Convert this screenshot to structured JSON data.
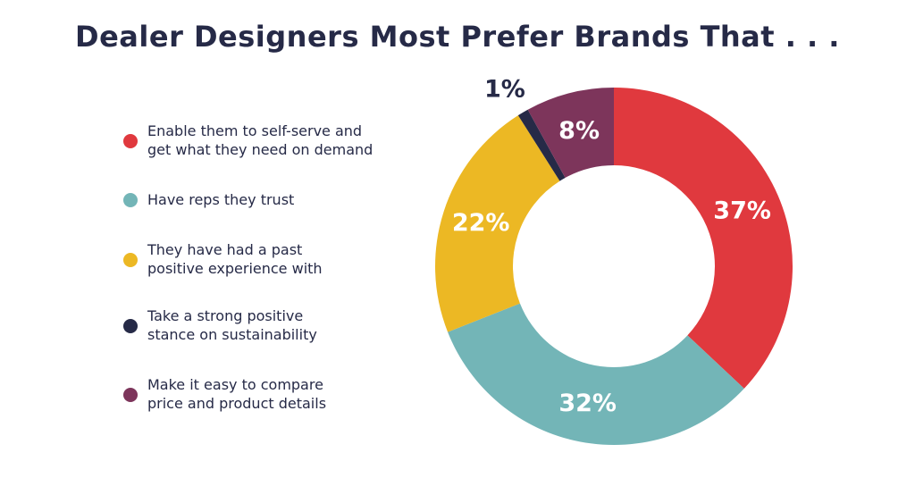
{
  "chart_data": {
    "type": "pie",
    "title": "Dealer Designers Most Prefer Brands That . . .",
    "categories": [
      "Enable them to self-serve and get what they need on demand",
      "Have reps they trust",
      "They have had a past positive experience with",
      "Take a strong positive stance on sustainability",
      "Make it easy to compare price and product details"
    ],
    "values": [
      37,
      32,
      22,
      1,
      8
    ],
    "value_labels": [
      "37%",
      "32%",
      "22%",
      "1%",
      "8%"
    ],
    "colors": [
      "#e0393e",
      "#73b5b7",
      "#ecb824",
      "#262a47",
      "#7d355b"
    ],
    "legend_lines": [
      [
        "Enable them to self-serve and",
        "get what they need on demand"
      ],
      [
        "Have reps they trust"
      ],
      [
        "They have had a past",
        "positive experience with"
      ],
      [
        "Take a strong positive",
        "stance on sustainability"
      ],
      [
        "Make it easy to compare",
        "price and product details"
      ]
    ],
    "legend_placement": "left",
    "donut": true
  }
}
